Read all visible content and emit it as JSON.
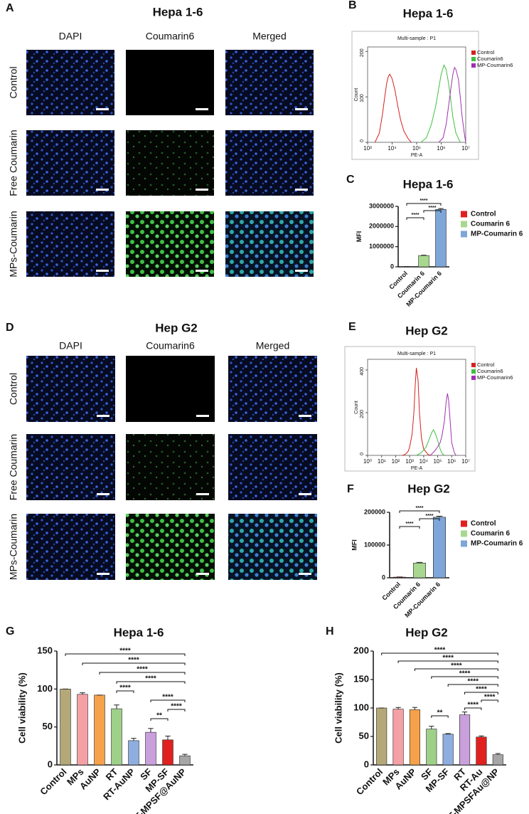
{
  "panels": {
    "A": {
      "letter": "A",
      "title": "Hepa 1-6",
      "columns": [
        "DAPI",
        "Coumarin6",
        "Merged"
      ],
      "rows": [
        "Control",
        "Free Coumarin",
        "MPs-Coumarin"
      ]
    },
    "D": {
      "letter": "D",
      "title": "Hep G2",
      "columns": [
        "DAPI",
        "Coumarin6",
        "Merged"
      ],
      "rows": [
        "Control",
        "Free Coumarin",
        "MPs-Coumarin"
      ]
    }
  },
  "chart_data": [
    {
      "type": "flow",
      "label": "B",
      "title": "Hepa 1-6",
      "plot_title": "Multi-sample : P1",
      "xlabel": "PE-A",
      "ylabel": "Count",
      "xscale": "log",
      "xlim": [
        1000,
        10000000
      ],
      "xticks": [
        {
          "value": 1000,
          "label": "10³"
        },
        {
          "value": 10000,
          "label": "10⁴"
        },
        {
          "value": 100000,
          "label": "10⁵"
        },
        {
          "value": 1000000,
          "label": "10⁶"
        },
        {
          "value": 10000000,
          "label": "10⁷"
        }
      ],
      "ylim": [
        0,
        210
      ],
      "yticks": [
        0,
        100,
        200
      ],
      "series": [
        {
          "name": "Control",
          "color": "#d42020",
          "x": [
            2000,
            3000,
            4000,
            5000,
            6000,
            7000,
            8000,
            10000,
            13000,
            17000,
            22000,
            30000,
            45000,
            60000
          ],
          "values": [
            0,
            20,
            60,
            100,
            130,
            145,
            150,
            140,
            115,
            80,
            50,
            25,
            8,
            0
          ]
        },
        {
          "name": "Coumarin6",
          "color": "#40c040",
          "x": [
            150000,
            250000,
            400000,
            600000,
            800000,
            1000000,
            1300000,
            1600000,
            2000000,
            2500000,
            3000000,
            4000000,
            6000000
          ],
          "values": [
            0,
            10,
            40,
            80,
            120,
            150,
            170,
            160,
            130,
            90,
            55,
            20,
            0
          ]
        },
        {
          "name": "MP-Coumarin6",
          "color": "#a030b0",
          "x": [
            800000,
            1200000,
            1600000,
            2000000,
            2500000,
            3000000,
            3500000,
            4000000,
            5000000,
            6000000,
            7000000,
            9000000,
            10000000
          ],
          "values": [
            0,
            10,
            40,
            80,
            120,
            150,
            165,
            160,
            140,
            100,
            60,
            15,
            0
          ]
        }
      ]
    },
    {
      "type": "bar",
      "label": "C",
      "title": "Hepa 1-6",
      "ylabel": "MFI",
      "legend": true,
      "categories": [
        "Control",
        "Coumarin 6",
        "MP-Coumarin 6"
      ],
      "values": [
        10000,
        560000,
        2850000
      ],
      "errors": [
        2000,
        20000,
        40000
      ],
      "colors": [
        "#e02020",
        "#a8d890",
        "#7ea6d8"
      ],
      "ylim": [
        0,
        3000000
      ],
      "yticks": [
        0,
        1000000,
        2000000,
        3000000
      ],
      "comparisons": [
        {
          "from": "Control",
          "to": "MP-Coumarin 6",
          "label": "****"
        },
        {
          "from": "Coumarin 6",
          "to": "MP-Coumarin 6",
          "label": "****"
        },
        {
          "from": "Control",
          "to": "Coumarin 6",
          "label": "****"
        }
      ]
    },
    {
      "type": "flow",
      "label": "E",
      "title": "Hep G2",
      "plot_title": "Multi-sample : P1",
      "xlabel": "PE-A",
      "ylabel": "Count",
      "xscale": "log",
      "xlim": [
        1,
        10000000
      ],
      "xticks": [
        {
          "value": 1,
          "label": "10⁰"
        },
        {
          "value": 10,
          "label": "10¹"
        },
        {
          "value": 100,
          "label": "10²"
        },
        {
          "value": 1000,
          "label": "10³"
        },
        {
          "value": 10000,
          "label": "10⁴"
        },
        {
          "value": 100000,
          "label": "10⁵"
        },
        {
          "value": 1000000,
          "label": "10⁶"
        },
        {
          "value": 10000000,
          "label": "10⁷"
        }
      ],
      "ylim": [
        0,
        450
      ],
      "yticks": [
        0,
        200,
        400
      ],
      "series": [
        {
          "name": "Control",
          "color": "#d42020",
          "x": [
            300,
            500,
            800,
            1000,
            1500,
            2000,
            2500,
            3000,
            4000,
            5000,
            7000,
            10000,
            20000,
            30000
          ],
          "values": [
            0,
            5,
            20,
            40,
            100,
            200,
            330,
            410,
            350,
            200,
            80,
            30,
            5,
            0
          ]
        },
        {
          "name": "Coumarin6",
          "color": "#40c040",
          "x": [
            3000,
            6000,
            10000,
            15000,
            20000,
            30000,
            40000,
            50000,
            70000,
            100000,
            150000,
            200000,
            300000
          ],
          "values": [
            0,
            10,
            25,
            40,
            60,
            90,
            110,
            120,
            100,
            70,
            30,
            10,
            0
          ]
        },
        {
          "name": "MP-Coumarin6",
          "color": "#a030b0",
          "x": [
            30000,
            60000,
            100000,
            150000,
            200000,
            300000,
            400000,
            500000,
            600000,
            800000,
            1000000,
            1500000,
            2000000
          ],
          "values": [
            0,
            20,
            40,
            60,
            90,
            160,
            250,
            290,
            260,
            150,
            60,
            15,
            0
          ]
        }
      ]
    },
    {
      "type": "bar",
      "label": "F",
      "title": "Hep G2",
      "ylabel": "MFI",
      "legend": true,
      "categories": [
        "Control",
        "Coumarin 6",
        "MP-Coumarin 6"
      ],
      "values": [
        2000,
        45000,
        185000
      ],
      "errors": [
        500,
        2000,
        3000
      ],
      "colors": [
        "#e02020",
        "#a8d890",
        "#7ea6d8"
      ],
      "ylim": [
        0,
        200000
      ],
      "yticks": [
        0,
        100000,
        200000
      ],
      "comparisons": [
        {
          "from": "Control",
          "to": "MP-Coumarin 6",
          "label": "****"
        },
        {
          "from": "Coumarin 6",
          "to": "MP-Coumarin 6",
          "label": "****"
        },
        {
          "from": "Control",
          "to": "Coumarin 6",
          "label": "****"
        }
      ]
    },
    {
      "type": "bar",
      "label": "G",
      "title": "Hepa 1-6",
      "ylabel": "Cell viability (%)",
      "legend": false,
      "categories": [
        "Control",
        "MPs",
        "AuNP",
        "RT",
        "RT-AuNP",
        "SF",
        "MP-SF",
        "RT-MPSF@AuNP"
      ],
      "values": [
        100,
        93,
        92,
        74,
        32,
        43,
        33,
        12
      ],
      "errors": [
        0,
        2,
        0,
        5,
        3,
        5,
        5,
        2
      ],
      "colors": [
        "#b5a878",
        "#f4a0a5",
        "#f5a24a",
        "#9fd08a",
        "#8eaee0",
        "#c9a0dc",
        "#e0211f",
        "#a6a6a6"
      ],
      "ylim": [
        0,
        150
      ],
      "yticks": [
        0,
        50,
        100,
        150
      ],
      "comparisons": [
        {
          "from": "Control",
          "to": "RT-MPSF@AuNP",
          "label": "****"
        },
        {
          "from": "MPs",
          "to": "RT-MPSF@AuNP",
          "label": "****"
        },
        {
          "from": "AuNP",
          "to": "RT-MPSF@AuNP",
          "label": "****"
        },
        {
          "from": "RT",
          "to": "RT-MPSF@AuNP",
          "label": "****"
        },
        {
          "from": "RT",
          "to": "RT-AuNP",
          "label": "****"
        },
        {
          "from": "SF",
          "to": "RT-MPSF@AuNP",
          "label": "****"
        },
        {
          "from": "MP-SF",
          "to": "RT-MPSF@AuNP",
          "label": "****"
        },
        {
          "from": "SF",
          "to": "MP-SF",
          "label": "**"
        }
      ]
    },
    {
      "type": "bar",
      "label": "H",
      "title": "Hep G2",
      "ylabel": "Cell viability (%)",
      "legend": false,
      "categories": [
        "Control",
        "MPs",
        "AuNP",
        "SF",
        "MP-SF",
        "RT",
        "RT-Au",
        "RT-MPSFAu@NP"
      ],
      "values": [
        100,
        98,
        97,
        63,
        54,
        88,
        49,
        18
      ],
      "errors": [
        0,
        3,
        4,
        5,
        1,
        5,
        2,
        2
      ],
      "colors": [
        "#b5a878",
        "#f4a0a5",
        "#f5a24a",
        "#9fd08a",
        "#8eaee0",
        "#c9a0dc",
        "#e0211f",
        "#a6a6a6"
      ],
      "ylim": [
        0,
        200
      ],
      "yticks": [
        0,
        50,
        100,
        150,
        200
      ],
      "comparisons": [
        {
          "from": "Control",
          "to": "RT-MPSFAu@NP",
          "label": "****"
        },
        {
          "from": "MPs",
          "to": "RT-MPSFAu@NP",
          "label": "****"
        },
        {
          "from": "AuNP",
          "to": "RT-MPSFAu@NP",
          "label": "****"
        },
        {
          "from": "SF",
          "to": "RT-MPSFAu@NP",
          "label": "****"
        },
        {
          "from": "MP-SF",
          "to": "RT-MPSFAu@NP",
          "label": "****"
        },
        {
          "from": "RT",
          "to": "RT-MPSFAu@NP",
          "label": "****"
        },
        {
          "from": "RT-Au",
          "to": "RT-MPSFAu@NP",
          "label": "****"
        },
        {
          "from": "RT",
          "to": "RT-Au",
          "label": "****"
        },
        {
          "from": "SF",
          "to": "MP-SF",
          "label": "**"
        }
      ]
    }
  ]
}
